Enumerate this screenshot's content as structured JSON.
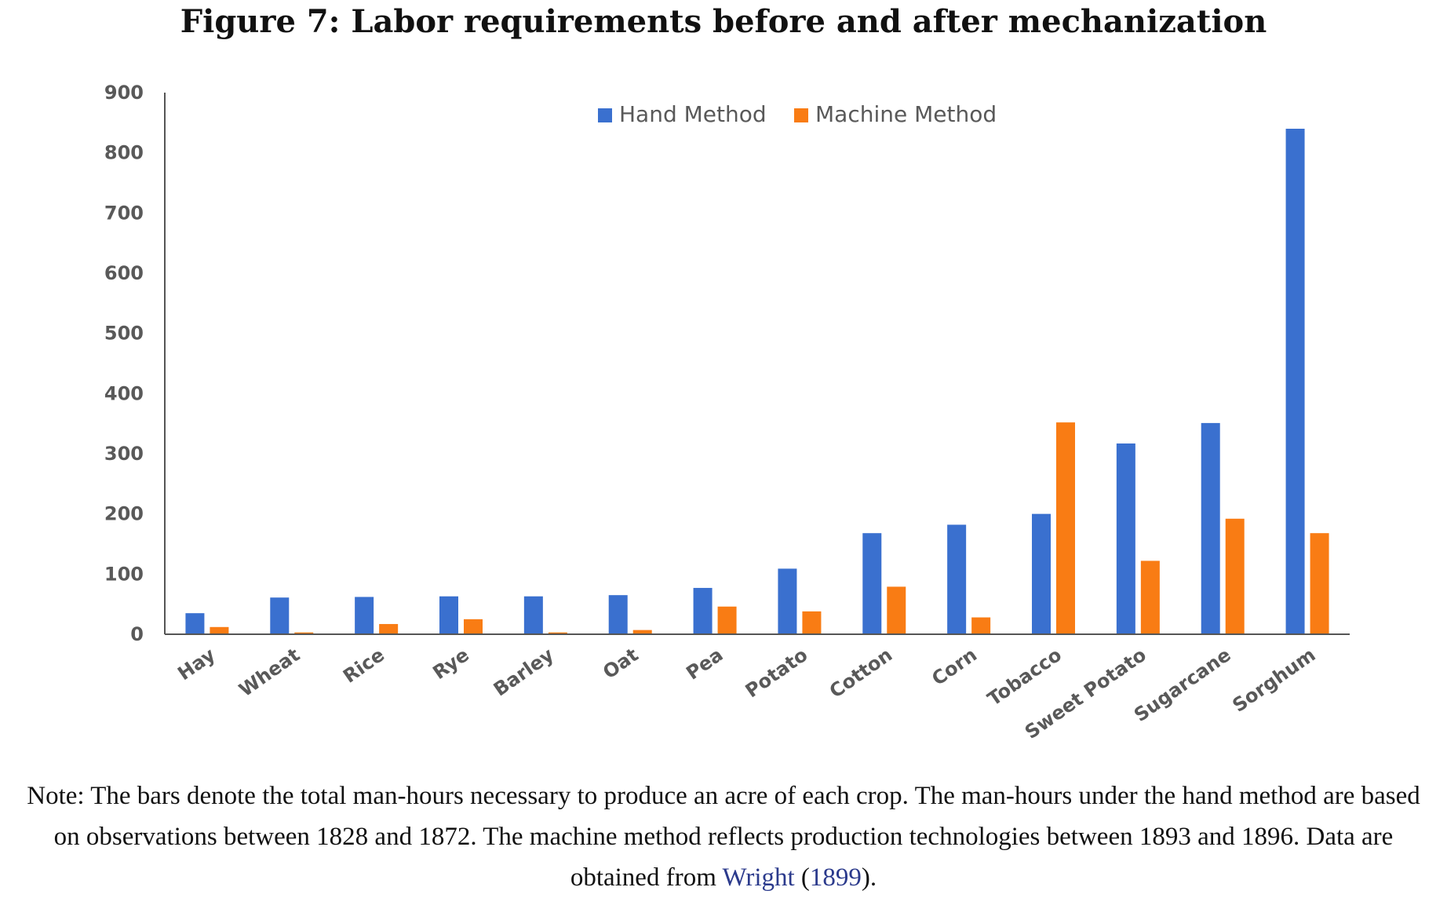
{
  "figure": {
    "title": "Figure 7: Labor requirements before and after mechanization",
    "note_text": "Note: The bars denote the total man-hours necessary to produce an acre of each crop. The man-hours under the hand method are based on observations between 1828 and 1872. The machine method reflects production technologies between 1893 and 1896. Data are obtained from ",
    "note_cite_author": "Wright",
    "note_cite_paren_open": " (",
    "note_cite_year": "1899",
    "note_cite_paren_close": ").",
    "link_color": "#2b3a8c"
  },
  "chart_data": {
    "type": "bar",
    "title": "",
    "xlabel": "",
    "ylabel": "",
    "ylim": [
      0,
      900
    ],
    "yticks": [
      0,
      100,
      200,
      300,
      400,
      500,
      600,
      700,
      800,
      900
    ],
    "grid": false,
    "legend_position": "top-center",
    "categories": [
      "Hay",
      "Wheat",
      "Rice",
      "Rye",
      "Barley",
      "Oat",
      "Pea",
      "Potato",
      "Cotton",
      "Corn",
      "Tobacco",
      "Sweet Potato",
      "Sugarcane",
      "Sorghum"
    ],
    "series": [
      {
        "name": "Hand Method",
        "color": "#3a70cf",
        "values": [
          35,
          61,
          62,
          63,
          63,
          65,
          77,
          109,
          168,
          182,
          200,
          317,
          351,
          840
        ]
      },
      {
        "name": "Machine Method",
        "color": "#f97c14",
        "values": [
          12,
          3,
          17,
          25,
          3,
          7,
          46,
          38,
          79,
          28,
          352,
          122,
          192,
          168
        ]
      }
    ]
  }
}
